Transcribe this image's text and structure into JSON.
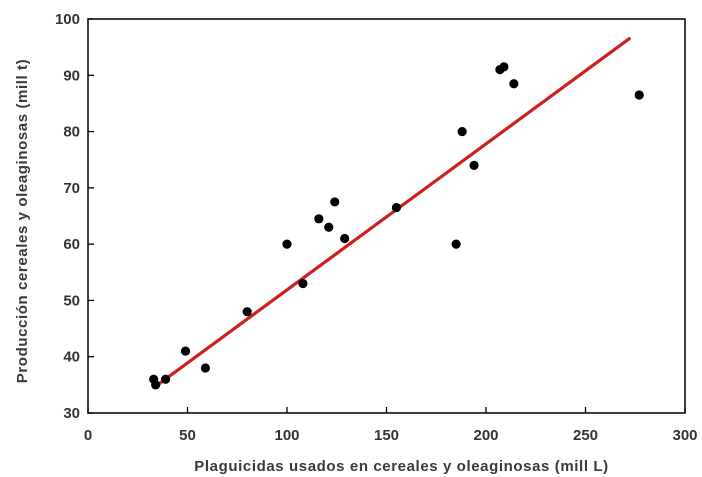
{
  "chart_data": {
    "type": "scatter",
    "title": "",
    "xlabel": "Plaguicidas usados en cereales y oleaginosas (mill L)",
    "ylabel": "Producción cereales y oleaginosas (mill t)",
    "xlim": [
      0,
      300
    ],
    "ylim": [
      30,
      100
    ],
    "xticks": [
      "0",
      "50",
      "100",
      "150",
      "200",
      "250",
      "300"
    ],
    "yticks": [
      "30",
      "40",
      "50",
      "60",
      "70",
      "80",
      "90",
      "100"
    ],
    "grid": false,
    "legend": "none",
    "colors": {
      "points": "#000000",
      "trendline": "#cc1f1f",
      "axes": "#000000"
    },
    "points": [
      {
        "x": 33,
        "y": 36
      },
      {
        "x": 34,
        "y": 35
      },
      {
        "x": 39,
        "y": 36
      },
      {
        "x": 49,
        "y": 41
      },
      {
        "x": 59,
        "y": 38
      },
      {
        "x": 80,
        "y": 48
      },
      {
        "x": 100,
        "y": 60
      },
      {
        "x": 108,
        "y": 53
      },
      {
        "x": 116,
        "y": 64.5
      },
      {
        "x": 121,
        "y": 63
      },
      {
        "x": 124,
        "y": 67.5
      },
      {
        "x": 129,
        "y": 61
      },
      {
        "x": 155,
        "y": 66.5
      },
      {
        "x": 185,
        "y": 60
      },
      {
        "x": 188,
        "y": 80
      },
      {
        "x": 194,
        "y": 74
      },
      {
        "x": 207,
        "y": 91
      },
      {
        "x": 209,
        "y": 91.5
      },
      {
        "x": 214,
        "y": 88.5
      },
      {
        "x": 277,
        "y": 86.5
      }
    ],
    "trendline": {
      "x": [
        35,
        272
      ],
      "y": [
        35,
        96.5
      ]
    }
  }
}
